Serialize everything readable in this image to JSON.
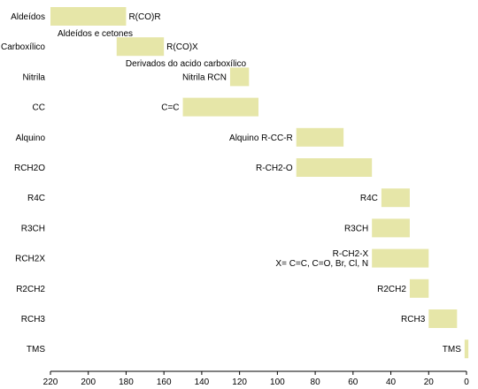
{
  "chart_data": {
    "type": "bar",
    "orientation": "horizontal-range",
    "title": "",
    "xlabel": "",
    "ylabel": "",
    "xlim": [
      220,
      0
    ],
    "x_reversed": true,
    "x_ticks": [
      "220",
      "200",
      "180",
      "160",
      "140",
      "120",
      "100",
      "80",
      "60",
      "40",
      "20",
      "0"
    ],
    "grid": false,
    "legend": "none",
    "bar_color": "#e6e6a8",
    "categories": [
      "Aldeídos",
      "Carboxílico",
      "Nitrila",
      "CC",
      "Alquino",
      "RCH2O",
      "R4C",
      "R3CH",
      "RCH2X",
      "R2CH2",
      "RCH3",
      "TMS"
    ],
    "ranges": [
      [
        220,
        180
      ],
      [
        185,
        160
      ],
      [
        125,
        115
      ],
      [
        150,
        110
      ],
      [
        90,
        65
      ],
      [
        90,
        50
      ],
      [
        45,
        30
      ],
      [
        50,
        30
      ],
      [
        50,
        20
      ],
      [
        30,
        20
      ],
      [
        20,
        5
      ],
      [
        1,
        -1
      ]
    ],
    "annotations": [
      {
        "row": 0,
        "lines": [
          "R(CO)R"
        ],
        "side": "right",
        "near": 180
      },
      {
        "row": 0,
        "lines": [
          "Aldeídos e cetones"
        ],
        "side": "below",
        "near": 220
      },
      {
        "row": 1,
        "lines": [
          "R(CO)X"
        ],
        "side": "right",
        "near": 160
      },
      {
        "row": 1,
        "lines": [
          "Derivados do acido carboxílico"
        ],
        "side": "below",
        "near": 184
      },
      {
        "row": 2,
        "lines": [
          "Nitrila RCN"
        ],
        "side": "left",
        "near": 125
      },
      {
        "row": 3,
        "lines": [
          "C=C"
        ],
        "side": "left",
        "near": 150
      },
      {
        "row": 4,
        "lines": [
          "Alquino R-CC-R"
        ],
        "side": "left",
        "near": 90
      },
      {
        "row": 5,
        "lines": [
          "R-CH2-O"
        ],
        "side": "left",
        "near": 90
      },
      {
        "row": 6,
        "lines": [
          "R4C"
        ],
        "side": "left",
        "near": 45
      },
      {
        "row": 7,
        "lines": [
          "R3CH"
        ],
        "side": "left",
        "near": 50
      },
      {
        "row": 8,
        "lines": [
          "R-CH2-X",
          "X= C=C, C=O, Br, Cl, N"
        ],
        "side": "left",
        "near": 50
      },
      {
        "row": 9,
        "lines": [
          "R2CH2"
        ],
        "side": "left",
        "near": 30
      },
      {
        "row": 10,
        "lines": [
          "RCH3"
        ],
        "side": "left",
        "near": 20
      },
      {
        "row": 11,
        "lines": [
          "TMS"
        ],
        "side": "left",
        "near": 1
      }
    ]
  }
}
